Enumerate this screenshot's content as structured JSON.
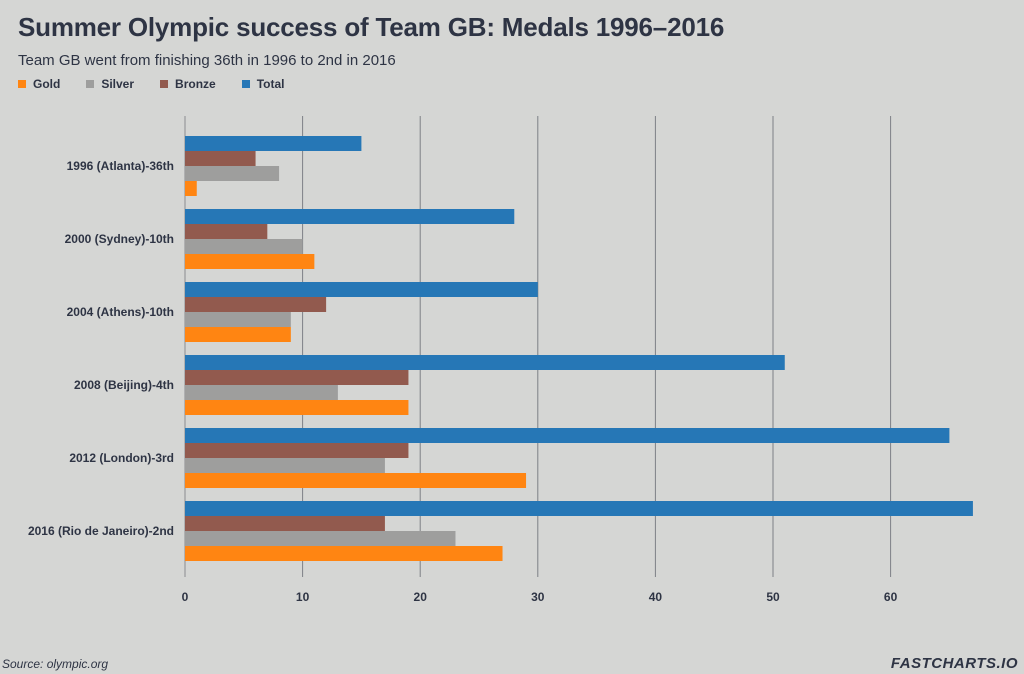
{
  "chart_data": {
    "type": "bar",
    "orientation": "horizontal",
    "title": "Summer Olympic success of Team GB: Medals 1996–2016",
    "subtitle": "Team GB went from finishing 36th in 1996 to 2nd in 2016",
    "categories": [
      "1996 (Atlanta)-36th",
      "2000 (Sydney)-10th",
      "2004 (Athens)-10th",
      "2008 (Beijing)-4th",
      "2012 (London)-3rd",
      "2016 (Rio de Janeiro)-2nd"
    ],
    "series": [
      {
        "name": "Gold",
        "color": "#ff8512",
        "values": [
          1,
          11,
          9,
          19,
          29,
          27
        ]
      },
      {
        "name": "Silver",
        "color": "#9e9e9d",
        "values": [
          8,
          10,
          9,
          13,
          17,
          23
        ]
      },
      {
        "name": "Bronze",
        "color": "#925a4e",
        "values": [
          6,
          7,
          12,
          19,
          19,
          17
        ]
      },
      {
        "name": "Total",
        "color": "#2677b6",
        "values": [
          15,
          28,
          30,
          51,
          65,
          67
        ]
      }
    ],
    "xlim": [
      0,
      68
    ],
    "xticks": [
      0,
      10,
      20,
      30,
      40,
      50,
      60
    ],
    "grid": true,
    "legend_position": "top-left",
    "source": "Source: olympic.org"
  },
  "branding": "FASTCHARTS.IO"
}
